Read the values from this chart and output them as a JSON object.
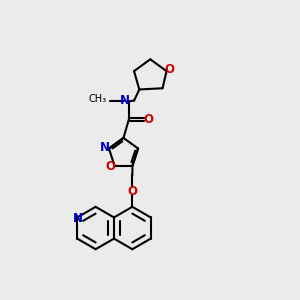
{
  "bg_color": "#ebebeb",
  "bond_color": "#000000",
  "n_color": "#0000cc",
  "o_color": "#cc0000",
  "lw": 1.5,
  "fig_size": [
    3.0,
    3.0
  ],
  "dpi": 100,
  "xlim": [
    0,
    10
  ],
  "ylim": [
    0,
    10
  ]
}
